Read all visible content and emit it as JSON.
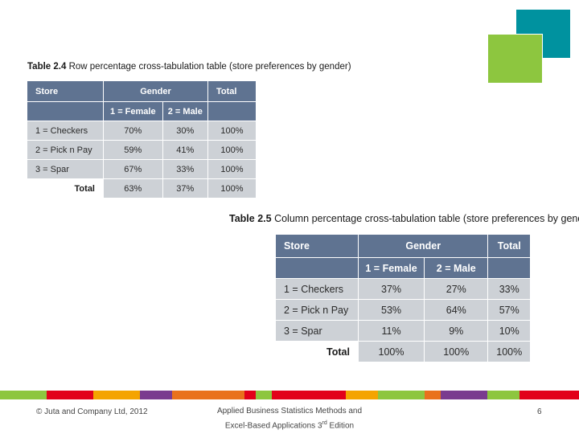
{
  "colors": {
    "header_bg": "#5f7391",
    "body_bg": "#cdd1d6",
    "deco_teal": "#00929f",
    "deco_green": "#8dc63f"
  },
  "table1": {
    "caption_label": "Table 2.4",
    "caption_text": "Row percentage cross-tabulation table (store preferences by gender)",
    "header": {
      "store": "Store",
      "gender": "Gender",
      "total": "Total",
      "female": "1 = Female",
      "male": "2 = Male"
    },
    "rows": [
      {
        "store": "1 = Checkers",
        "female": "70%",
        "male": "30%",
        "total": "100%"
      },
      {
        "store": "2 = Pick n Pay",
        "female": "59%",
        "male": "41%",
        "total": "100%"
      },
      {
        "store": "3 = Spar",
        "female": "67%",
        "male": "33%",
        "total": "100%"
      }
    ],
    "total_row": {
      "label": "Total",
      "female": "63%",
      "male": "37%",
      "total": "100%"
    }
  },
  "table2": {
    "caption_label": "Table 2.5",
    "caption_text": "Column percentage cross-tabulation table (store preferences by gender)",
    "header": {
      "store": "Store",
      "gender": "Gender",
      "total": "Total",
      "female": "1 = Female",
      "male": "2 = Male"
    },
    "rows": [
      {
        "store": "1 = Checkers",
        "female": "37%",
        "male": "27%",
        "total": "33%"
      },
      {
        "store": "2 = Pick n Pay",
        "female": "53%",
        "male": "64%",
        "total": "57%"
      },
      {
        "store": "3 = Spar",
        "female": "11%",
        "male": "9%",
        "total": "10%"
      }
    ],
    "total_row": {
      "label": "Total",
      "female": "100%",
      "male": "100%",
      "total": "100%"
    }
  },
  "footer": {
    "copyright": "© Juta and Company Ltd, 2012",
    "book_line1": "Applied Business Statistics Methods and",
    "book_line2_pre": "Excel-Based Applications 3",
    "book_line2_sup": "rd",
    "book_line2_post": " Edition",
    "page_number": "6",
    "bar_colors": [
      "#8dc63f",
      "#e2001a",
      "#f4a400",
      "#7a3b8f",
      "#e9711c",
      "#e2001a",
      "#8dc63f",
      "#e2001a",
      "#f4a400",
      "#8dc63f",
      "#e9711c",
      "#7a3b8f",
      "#8dc63f",
      "#e2001a"
    ]
  }
}
